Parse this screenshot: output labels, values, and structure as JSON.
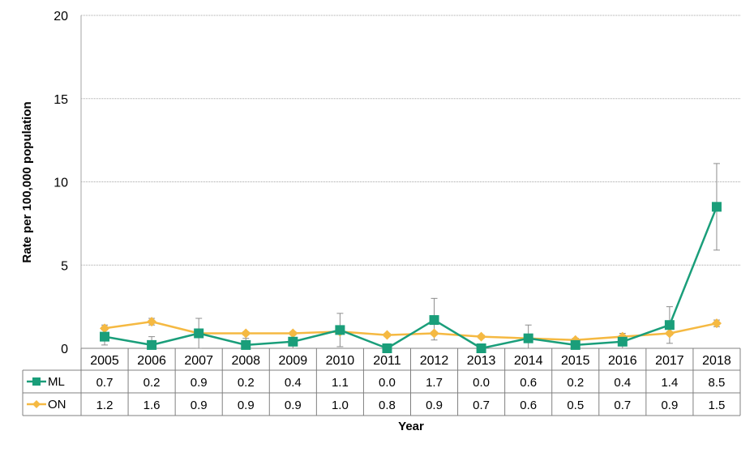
{
  "chart_data": {
    "type": "line",
    "xlabel": "Year",
    "ylabel": "Rate per 100,000 population",
    "ylim": [
      0,
      20
    ],
    "yticks": [
      0,
      5,
      10,
      15,
      20
    ],
    "grid": true,
    "legend": "data table rows",
    "categories": [
      "2005",
      "2006",
      "2007",
      "2008",
      "2009",
      "2010",
      "2011",
      "2012",
      "2013",
      "2014",
      "2015",
      "2016",
      "2017",
      "2018"
    ],
    "series": [
      {
        "name": "ML",
        "color": "#1a9e7a",
        "marker": "square",
        "values": [
          0.7,
          0.2,
          0.9,
          0.2,
          0.4,
          1.1,
          0.0,
          1.7,
          0.0,
          0.6,
          0.2,
          0.4,
          1.4,
          8.5
        ],
        "labels": [
          "0.7",
          "0.2",
          "0.9",
          "0.2",
          "0.4",
          "1.1",
          "0.0",
          "1.7",
          "0.0",
          "0.6",
          "0.2",
          "0.4",
          "1.4",
          "8.5"
        ],
        "error_low": [
          0.2,
          0.0,
          0.0,
          0.0,
          0.0,
          0.1,
          0.0,
          0.5,
          0.0,
          0.0,
          0.0,
          0.0,
          0.3,
          5.9
        ],
        "error_high": [
          1.3,
          0.7,
          1.8,
          0.6,
          0.9,
          2.1,
          0.0,
          3.0,
          0.0,
          1.4,
          0.6,
          0.9,
          2.5,
          11.1
        ]
      },
      {
        "name": "ON",
        "color": "#f5b942",
        "marker": "diamond",
        "values": [
          1.2,
          1.6,
          0.9,
          0.9,
          0.9,
          1.0,
          0.8,
          0.9,
          0.7,
          0.6,
          0.5,
          0.7,
          0.9,
          1.5
        ],
        "labels": [
          "1.2",
          "1.6",
          "0.9",
          "0.9",
          "0.9",
          "1.0",
          "0.8",
          "0.9",
          "0.7",
          "0.6",
          "0.5",
          "0.7",
          "0.9",
          "1.5"
        ],
        "error_low": [
          1.1,
          1.4,
          0.8,
          0.8,
          0.8,
          0.9,
          0.7,
          0.8,
          0.6,
          0.5,
          0.4,
          0.6,
          0.8,
          1.3
        ],
        "error_high": [
          1.4,
          1.8,
          1.0,
          1.0,
          1.0,
          1.1,
          0.9,
          1.0,
          0.8,
          0.7,
          0.6,
          0.8,
          1.0,
          1.7
        ]
      }
    ]
  }
}
